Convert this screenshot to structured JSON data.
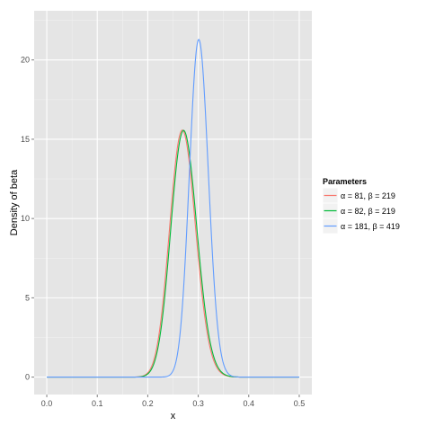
{
  "chart_data": {
    "type": "line",
    "xlabel": "x",
    "ylabel": "Density of beta",
    "xlim": [
      -0.025,
      0.525
    ],
    "ylim": [
      -1.1,
      23.1
    ],
    "x_ticks": [
      0.0,
      0.1,
      0.2,
      0.3,
      0.4,
      0.5
    ],
    "x_tick_labels": [
      "0.0",
      "0.1",
      "0.2",
      "0.3",
      "0.4",
      "0.5"
    ],
    "y_ticks": [
      0,
      5,
      10,
      15,
      20
    ],
    "y_tick_labels": [
      "0",
      "5",
      "10",
      "15",
      "20"
    ],
    "grid": true,
    "legend": {
      "title": "Parameters",
      "placement": "right"
    },
    "x_range": [
      0.0,
      0.5
    ],
    "series": [
      {
        "name": "α = 81, β = 219",
        "alpha": 81,
        "beta": 219,
        "color": "#f8766d"
      },
      {
        "name": "α = 82, β = 219",
        "alpha": 82,
        "beta": 219,
        "color": "#00ba38"
      },
      {
        "name": "α = 181, β = 419",
        "alpha": 181,
        "beta": 419,
        "color": "#619cff"
      }
    ],
    "colors": {
      "panel_background": "#e5e5e5",
      "grid_major": "#ffffff",
      "grid_minor": "#f2f2f2",
      "tick_text": "#4d4d4d"
    }
  }
}
